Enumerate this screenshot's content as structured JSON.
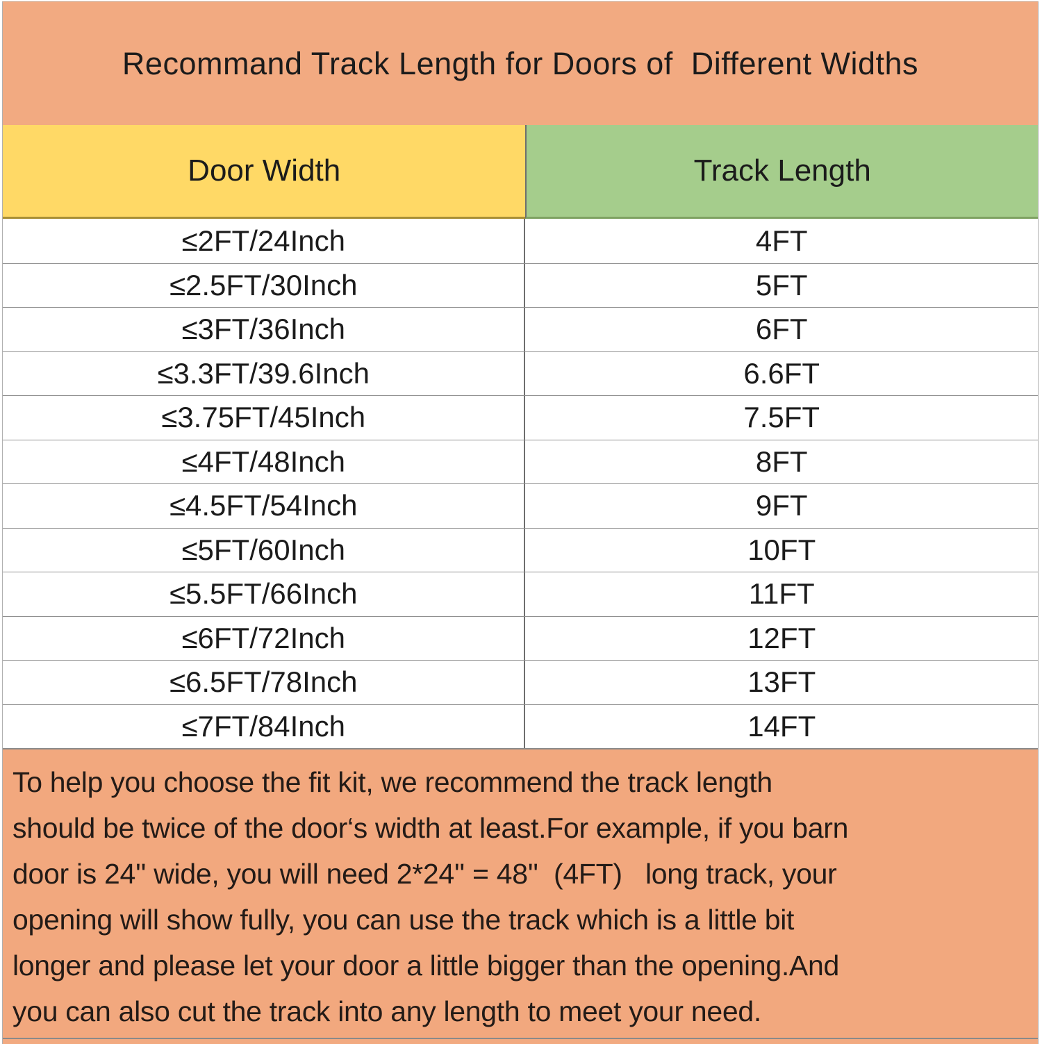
{
  "chart_data": {
    "type": "table",
    "title": "Recommand Track Length for Doors of  Different Widths",
    "columns": [
      "Door Width",
      "Track Length"
    ],
    "rows": [
      [
        "≤2FT/24Inch",
        "4FT"
      ],
      [
        "≤2.5FT/30Inch",
        "5FT"
      ],
      [
        "≤3FT/36Inch",
        "6FT"
      ],
      [
        "≤3.3FT/39.6Inch",
        "6.6FT"
      ],
      [
        "≤3.75FT/45Inch",
        "7.5FT"
      ],
      [
        "≤4FT/48Inch",
        "8FT"
      ],
      [
        "≤4.5FT/54Inch",
        "9FT"
      ],
      [
        "≤5FT/60Inch",
        "10FT"
      ],
      [
        "≤5.5FT/66Inch",
        "11FT"
      ],
      [
        "≤6FT/72Inch",
        "12FT"
      ],
      [
        "≤6.5FT/78Inch",
        "13FT"
      ],
      [
        "≤7FT/84Inch",
        "14FT"
      ]
    ],
    "note": "To help you choose the fit kit, we recommend the track length\nshould be twice of the door‘s width at least.For example, if you barn\ndoor is 24'' wide, you will need 2*24'' = 48''  (4FT)   long track, your\nopening will show fully, you can use the track which is a little bit\nlonger and please let your door a little bigger than the opening.And\nyou can also cut the track into any length to meet your need."
  },
  "colors": {
    "banner_bg": "#f2aa81",
    "door_width_header_bg": "#ffd966",
    "track_length_header_bg": "#a5cd8c",
    "note_bg": "#f2a87e",
    "grid_line": "#8f8f8f",
    "text": "#1b1b1b"
  }
}
